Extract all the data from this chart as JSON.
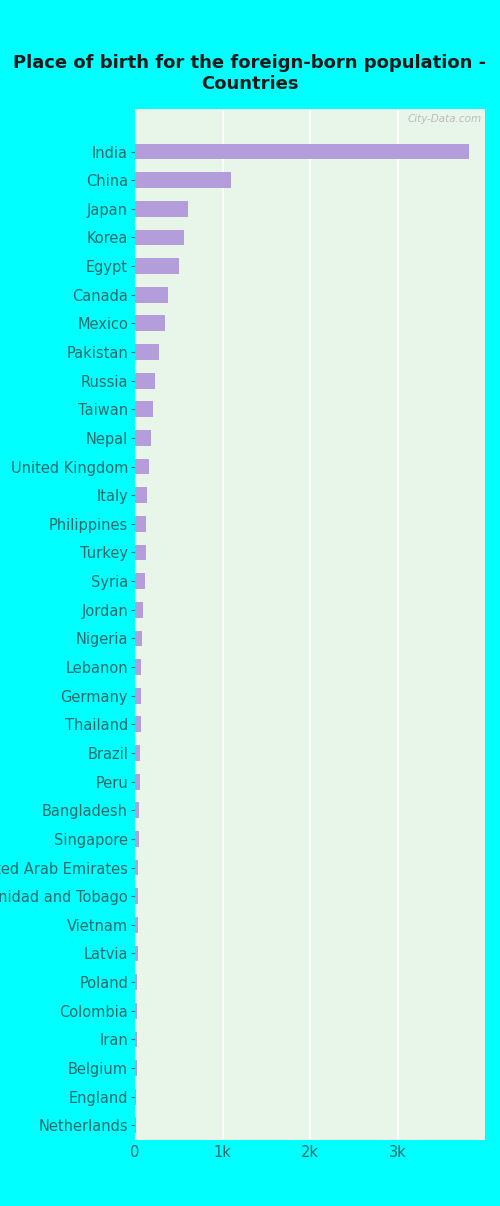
{
  "title": "Place of birth for the foreign-born population -\nCountries",
  "categories": [
    "India",
    "China",
    "Japan",
    "Korea",
    "Egypt",
    "Canada",
    "Mexico",
    "Pakistan",
    "Russia",
    "Taiwan",
    "Nepal",
    "United Kingdom",
    "Italy",
    "Philippines",
    "Turkey",
    "Syria",
    "Jordan",
    "Nigeria",
    "Lebanon",
    "Germany",
    "Thailand",
    "Brazil",
    "Peru",
    "Bangladesh",
    "Singapore",
    "United Arab Emirates",
    "Trinidad and Tobago",
    "Vietnam",
    "Latvia",
    "Poland",
    "Colombia",
    "Iran",
    "Belgium",
    "England",
    "Netherlands"
  ],
  "values": [
    3820,
    1100,
    600,
    555,
    500,
    375,
    340,
    275,
    230,
    210,
    178,
    162,
    142,
    130,
    120,
    110,
    90,
    80,
    73,
    68,
    63,
    58,
    52,
    47,
    42,
    38,
    36,
    33,
    29,
    27,
    24,
    21,
    19,
    17,
    14
  ],
  "bar_color": "#b39ddb",
  "background_color_outer": "#00ffff",
  "background_color_plot": "#e8f5e9",
  "tick_label_color": "#2a6a6a",
  "title_color": "#1a1a1a",
  "xlim": [
    0,
    4000
  ],
  "xticks": [
    0,
    1000,
    2000,
    3000
  ],
  "xticklabels": [
    "0",
    "1k",
    "2k",
    "3k"
  ],
  "watermark": "City-Data.com",
  "title_fontsize": 13,
  "tick_fontsize": 10.5
}
